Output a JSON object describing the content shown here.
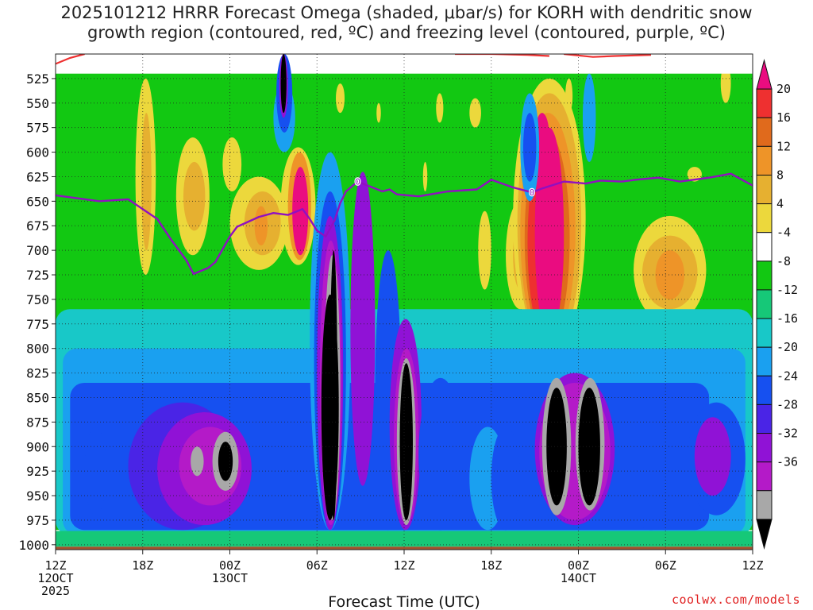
{
  "title_line1": "2025101212 HRRR Forecast Omega (shaded, μbar/s) for KORH with dendritic snow",
  "title_line2": "growth region (contoured, red, ºC) and freezing level (contoured, purple, ºC)",
  "watermark": "coolwx.com/models",
  "colors": {
    "pink": "#ea0c80",
    "red": "#ee3030",
    "orange_dark": "#e06a1c",
    "orange": "#ee9428",
    "gold": "#e6b030",
    "yellow": "#ecd83c",
    "white": "#ffffff",
    "green": "#12c812",
    "green2": "#16c878",
    "teal": "#18c8c8",
    "cyan": "#1aa0f0",
    "blue": "#1650f0",
    "blue2": "#4a24e6",
    "purple": "#9012d6",
    "violet": "#b41ac8",
    "gray": "#a8a8a8",
    "black": "#000000",
    "freezing_line": "#9010c0",
    "dgz_line": "#ee3030",
    "ground": "#a0522d"
  },
  "chart_data": {
    "type": "heatmap",
    "title": "2025101212 HRRR Forecast Omega (shaded, μbar/s) for KORH with dendritic snow growth region (contoured, red, ºC) and freezing level (contoured, purple, ºC)",
    "xlabel": "Forecast Time (UTC)",
    "ylabel": "",
    "x_ticks": [
      {
        "hour": 0,
        "label": "12Z",
        "sub": "12OCT",
        "year": "2025"
      },
      {
        "hour": 6,
        "label": "18Z"
      },
      {
        "hour": 12,
        "label": "00Z",
        "sub": "13OCT"
      },
      {
        "hour": 18,
        "label": "06Z"
      },
      {
        "hour": 24,
        "label": "12Z"
      },
      {
        "hour": 30,
        "label": "18Z"
      },
      {
        "hour": 36,
        "label": "00Z",
        "sub": "14OCT"
      },
      {
        "hour": 42,
        "label": "06Z"
      },
      {
        "hour": 48,
        "label": "12Z"
      }
    ],
    "xlim": [
      0,
      48
    ],
    "y_ticks": [
      525,
      550,
      575,
      600,
      625,
      650,
      675,
      700,
      725,
      750,
      775,
      800,
      825,
      850,
      875,
      900,
      925,
      950,
      975,
      1000
    ],
    "ylim": [
      1005,
      500
    ],
    "colorbar": {
      "labels": [
        "20",
        "16",
        "12",
        "8",
        "4",
        "-4",
        "-8",
        "-12",
        "-16",
        "-20",
        "-24",
        "-28",
        "-32",
        "-36"
      ],
      "bins": [
        "pink",
        "red",
        "orange_dark",
        "orange",
        "gold",
        "yellow",
        "white",
        "green",
        "green2",
        "teal",
        "cyan",
        "blue",
        "blue2",
        "purple",
        "violet",
        "gray",
        "black"
      ]
    },
    "freezing_level": {
      "name": "0",
      "label": "0",
      "points": [
        [
          0,
          644
        ],
        [
          3,
          650
        ],
        [
          5,
          648
        ],
        [
          7,
          668
        ],
        [
          8,
          690
        ],
        [
          9,
          710
        ],
        [
          9.5,
          724
        ],
        [
          10.5,
          718
        ],
        [
          11,
          712
        ],
        [
          12,
          686
        ],
        [
          12.5,
          676
        ],
        [
          14,
          666
        ],
        [
          15,
          662
        ],
        [
          16,
          664
        ],
        [
          17,
          658
        ],
        [
          17.5,
          668
        ],
        [
          18,
          680
        ],
        [
          18.6,
          686
        ],
        [
          19.2,
          670
        ],
        [
          19.6,
          652
        ],
        [
          20,
          640
        ],
        [
          20.8,
          630
        ],
        [
          21.5,
          634
        ],
        [
          22.5,
          640
        ],
        [
          23,
          638
        ],
        [
          23.5,
          643
        ],
        [
          25,
          645
        ],
        [
          27,
          640
        ],
        [
          29,
          638
        ],
        [
          30,
          628
        ],
        [
          31.5,
          636
        ],
        [
          32.8,
          641
        ],
        [
          33.5,
          637
        ],
        [
          35,
          630
        ],
        [
          36.5,
          632
        ],
        [
          37.5,
          629
        ],
        [
          39,
          630
        ],
        [
          40,
          628
        ],
        [
          41.5,
          626
        ],
        [
          43,
          630
        ],
        [
          45,
          626
        ],
        [
          46.5,
          622
        ],
        [
          47,
          626
        ],
        [
          48,
          634
        ]
      ],
      "label_positions": [
        [
          20.8,
          630
        ],
        [
          32.8,
          641
        ]
      ]
    },
    "dgz_region": {
      "name": "dendritic snow growth region",
      "segments": [
        [
          [
            0,
            510
          ],
          [
            1,
            504
          ],
          [
            2,
            500
          ]
        ],
        [
          [
            27.5,
            500
          ],
          [
            30,
            500
          ],
          [
            32.5,
            501
          ],
          [
            34,
            502
          ]
        ],
        [
          [
            35,
            500
          ],
          [
            37,
            503
          ],
          [
            38.5,
            502
          ],
          [
            41,
            501
          ]
        ]
      ]
    },
    "omega_blobs": [
      {
        "c": "green",
        "x": [
          0,
          48
        ],
        "p": [
          506,
          985
        ],
        "shape": "band"
      },
      {
        "c": "yellow",
        "x": [
          2.9,
          3.2
        ],
        "p": [
          760,
          785
        ]
      },
      {
        "c": "yellow",
        "x": [
          5.5,
          6.9
        ],
        "p": [
          525,
          725
        ]
      },
      {
        "c": "gold",
        "x": [
          5.9,
          6.6
        ],
        "p": [
          560,
          700
        ]
      },
      {
        "c": "yellow",
        "x": [
          8.3,
          10.6
        ],
        "p": [
          585,
          705
        ]
      },
      {
        "c": "gold",
        "x": [
          8.8,
          10.3
        ],
        "p": [
          610,
          680
        ]
      },
      {
        "c": "yellow",
        "x": [
          11.5,
          12.8
        ],
        "p": [
          585,
          640
        ]
      },
      {
        "c": "yellow",
        "x": [
          12,
          16
        ],
        "p": [
          625,
          720
        ]
      },
      {
        "c": "gold",
        "x": [
          13,
          15.5
        ],
        "p": [
          640,
          705
        ]
      },
      {
        "c": "orange",
        "x": [
          13.7,
          14.6
        ],
        "p": [
          655,
          695
        ]
      },
      {
        "c": "yellow",
        "x": [
          15.5,
          17.9
        ],
        "p": [
          595,
          715
        ]
      },
      {
        "c": "orange",
        "x": [
          16,
          17.6
        ],
        "p": [
          600,
          710
        ]
      },
      {
        "c": "pink",
        "x": [
          16.3,
          17.4
        ],
        "p": [
          615,
          705
        ]
      },
      {
        "c": "yellow",
        "x": [
          19.3,
          19.9
        ],
        "p": [
          530,
          560
        ]
      },
      {
        "c": "yellow",
        "x": [
          22.1,
          22.4
        ],
        "p": [
          550,
          570
        ]
      },
      {
        "c": "yellow",
        "x": [
          25.3,
          25.6
        ],
        "p": [
          610,
          640
        ]
      },
      {
        "c": "yellow",
        "x": [
          26.2,
          26.7
        ],
        "p": [
          540,
          570
        ]
      },
      {
        "c": "yellow",
        "x": [
          28.5,
          29.3
        ],
        "p": [
          545,
          575
        ]
      },
      {
        "c": "yellow",
        "x": [
          29.1,
          30
        ],
        "p": [
          660,
          740
        ]
      },
      {
        "c": "yellow",
        "x": [
          31,
          33
        ],
        "p": [
          650,
          760
        ]
      },
      {
        "c": "gold",
        "x": [
          31.5,
          32.5
        ],
        "p": [
          670,
          740
        ]
      },
      {
        "c": "yellow",
        "x": [
          31.5,
          36.5
        ],
        "p": [
          525,
          810
        ]
      },
      {
        "c": "gold",
        "x": [
          31.8,
          36.2
        ],
        "p": [
          540,
          805
        ]
      },
      {
        "c": "orange",
        "x": [
          32,
          35.8
        ],
        "p": [
          560,
          800
        ]
      },
      {
        "c": "orange_dark",
        "x": [
          32.3,
          35.4
        ],
        "p": [
          580,
          795
        ]
      },
      {
        "c": "red",
        "x": [
          32.5,
          35
        ],
        "p": [
          595,
          790
        ]
      },
      {
        "c": "pink",
        "x": [
          33,
          35
        ],
        "p": [
          575,
          790
        ]
      },
      {
        "c": "pink",
        "x": [
          33,
          34
        ],
        "p": [
          560,
          610
        ]
      },
      {
        "c": "yellow",
        "x": [
          35.1,
          35.6
        ],
        "p": [
          525,
          560
        ]
      },
      {
        "c": "yellow",
        "x": [
          39.8,
          44.8
        ],
        "p": [
          665,
          775
        ]
      },
      {
        "c": "gold",
        "x": [
          40.4,
          44.2
        ],
        "p": [
          685,
          760
        ]
      },
      {
        "c": "orange",
        "x": [
          41.3,
          43.3
        ],
        "p": [
          700,
          750
        ]
      },
      {
        "c": "yellow",
        "x": [
          45.8,
          46.5
        ],
        "p": [
          510,
          550
        ]
      },
      {
        "c": "yellow",
        "x": [
          43.5,
          44.5
        ],
        "p": [
          615,
          630
        ]
      },
      {
        "c": "white",
        "x": [
          0,
          48
        ],
        "p": [
          500,
          520
        ],
        "shape": "top"
      },
      {
        "c": "teal",
        "x": [
          0,
          48
        ],
        "p": [
          760,
          990
        ],
        "shape": "lowband"
      },
      {
        "c": "cyan",
        "x": [
          0.5,
          47.5
        ],
        "p": [
          800,
          990
        ],
        "shape": "lowband"
      },
      {
        "c": "blue",
        "x": [
          1,
          45
        ],
        "p": [
          835,
          985
        ],
        "shape": "lowband"
      },
      {
        "c": "blue2",
        "x": [
          5,
          12.5
        ],
        "p": [
          855,
          985
        ]
      },
      {
        "c": "purple",
        "x": [
          7,
          13.5
        ],
        "p": [
          865,
          980
        ]
      },
      {
        "c": "violet",
        "x": [
          8.5,
          12.8
        ],
        "p": [
          880,
          960
        ]
      },
      {
        "c": "gray",
        "x": [
          9.3,
          10.2
        ],
        "p": [
          900,
          930
        ]
      },
      {
        "c": "gray",
        "x": [
          10.8,
          12.6
        ],
        "p": [
          885,
          945
        ]
      },
      {
        "c": "black",
        "x": [
          11.2,
          12.2
        ],
        "p": [
          895,
          935
        ]
      },
      {
        "c": "cyan",
        "x": [
          15,
          16.5
        ],
        "p": [
          530,
          600
        ]
      },
      {
        "c": "blue",
        "x": [
          15.2,
          16.3
        ],
        "p": [
          500,
          580
        ]
      },
      {
        "c": "purple",
        "x": [
          15.4,
          16
        ],
        "p": [
          500,
          565
        ]
      },
      {
        "c": "black",
        "x": [
          15.5,
          15.9
        ],
        "p": [
          500,
          560
        ]
      },
      {
        "c": "cyan",
        "x": [
          17.5,
          20.3
        ],
        "p": [
          600,
          985
        ]
      },
      {
        "c": "blue",
        "x": [
          17.8,
          20
        ],
        "p": [
          640,
          985
        ]
      },
      {
        "c": "purple",
        "x": [
          18,
          19.8
        ],
        "p": [
          665,
          985
        ]
      },
      {
        "c": "violet",
        "x": [
          18.2,
          19.7
        ],
        "p": [
          690,
          980
        ]
      },
      {
        "c": "gray",
        "x": [
          18.5,
          19.6
        ],
        "p": [
          705,
          975
        ]
      },
      {
        "c": "black",
        "x": [
          18.9,
          19.4
        ],
        "p": [
          700,
          975
        ]
      },
      {
        "c": "black",
        "x": [
          18.3,
          19.5
        ],
        "p": [
          745,
          975
        ]
      },
      {
        "c": "purple",
        "x": [
          20.3,
          22
        ],
        "p": [
          620,
          940
        ]
      },
      {
        "c": "blue",
        "x": [
          22,
          23.8
        ],
        "p": [
          700,
          985
        ]
      },
      {
        "c": "purple",
        "x": [
          23,
          25.2
        ],
        "p": [
          770,
          985
        ]
      },
      {
        "c": "violet",
        "x": [
          23.3,
          25
        ],
        "p": [
          800,
          980
        ]
      },
      {
        "c": "gray",
        "x": [
          23.5,
          24.8
        ],
        "p": [
          810,
          980
        ]
      },
      {
        "c": "black",
        "x": [
          23.7,
          24.6
        ],
        "p": [
          815,
          975
        ]
      },
      {
        "c": "purple",
        "x": [
          25.5,
          27.5
        ],
        "p": [
          835,
          960
        ]
      },
      {
        "c": "blue",
        "x": [
          25,
          28
        ],
        "p": [
          830,
          985
        ]
      },
      {
        "c": "cyan",
        "x": [
          28.5,
          31
        ],
        "p": [
          880,
          985
        ]
      },
      {
        "c": "blue",
        "x": [
          30,
          32
        ],
        "p": [
          880,
          985
        ]
      },
      {
        "c": "purple",
        "x": [
          33,
          38.5
        ],
        "p": [
          825,
          980
        ]
      },
      {
        "c": "violet",
        "x": [
          33.3,
          38.2
        ],
        "p": [
          835,
          975
        ]
      },
      {
        "c": "gray",
        "x": [
          33.5,
          35.5
        ],
        "p": [
          830,
          970
        ]
      },
      {
        "c": "gray",
        "x": [
          35.8,
          37.8
        ],
        "p": [
          830,
          965
        ]
      },
      {
        "c": "black",
        "x": [
          33.8,
          35.2
        ],
        "p": [
          840,
          960
        ]
      },
      {
        "c": "black",
        "x": [
          36,
          37.5
        ],
        "p": [
          840,
          960
        ]
      },
      {
        "c": "cyan",
        "x": [
          36.3,
          37.2
        ],
        "p": [
          520,
          610
        ]
      },
      {
        "c": "cyan",
        "x": [
          32,
          33.3
        ],
        "p": [
          540,
          650
        ]
      },
      {
        "c": "blue",
        "x": [
          32.2,
          33.1
        ],
        "p": [
          560,
          630
        ]
      },
      {
        "c": "blue",
        "x": [
          39,
          43
        ],
        "p": [
          850,
          985
        ]
      },
      {
        "c": "blue",
        "x": [
          43.5,
          47.5
        ],
        "p": [
          855,
          970
        ]
      },
      {
        "c": "purple",
        "x": [
          44,
          46.5
        ],
        "p": [
          870,
          950
        ]
      },
      {
        "c": "blue",
        "x": [
          2,
          3.5
        ],
        "p": [
          880,
          970
        ]
      },
      {
        "c": "green2",
        "x": [
          0,
          48
        ],
        "p": [
          986,
          1002
        ],
        "shape": "ground"
      }
    ]
  }
}
